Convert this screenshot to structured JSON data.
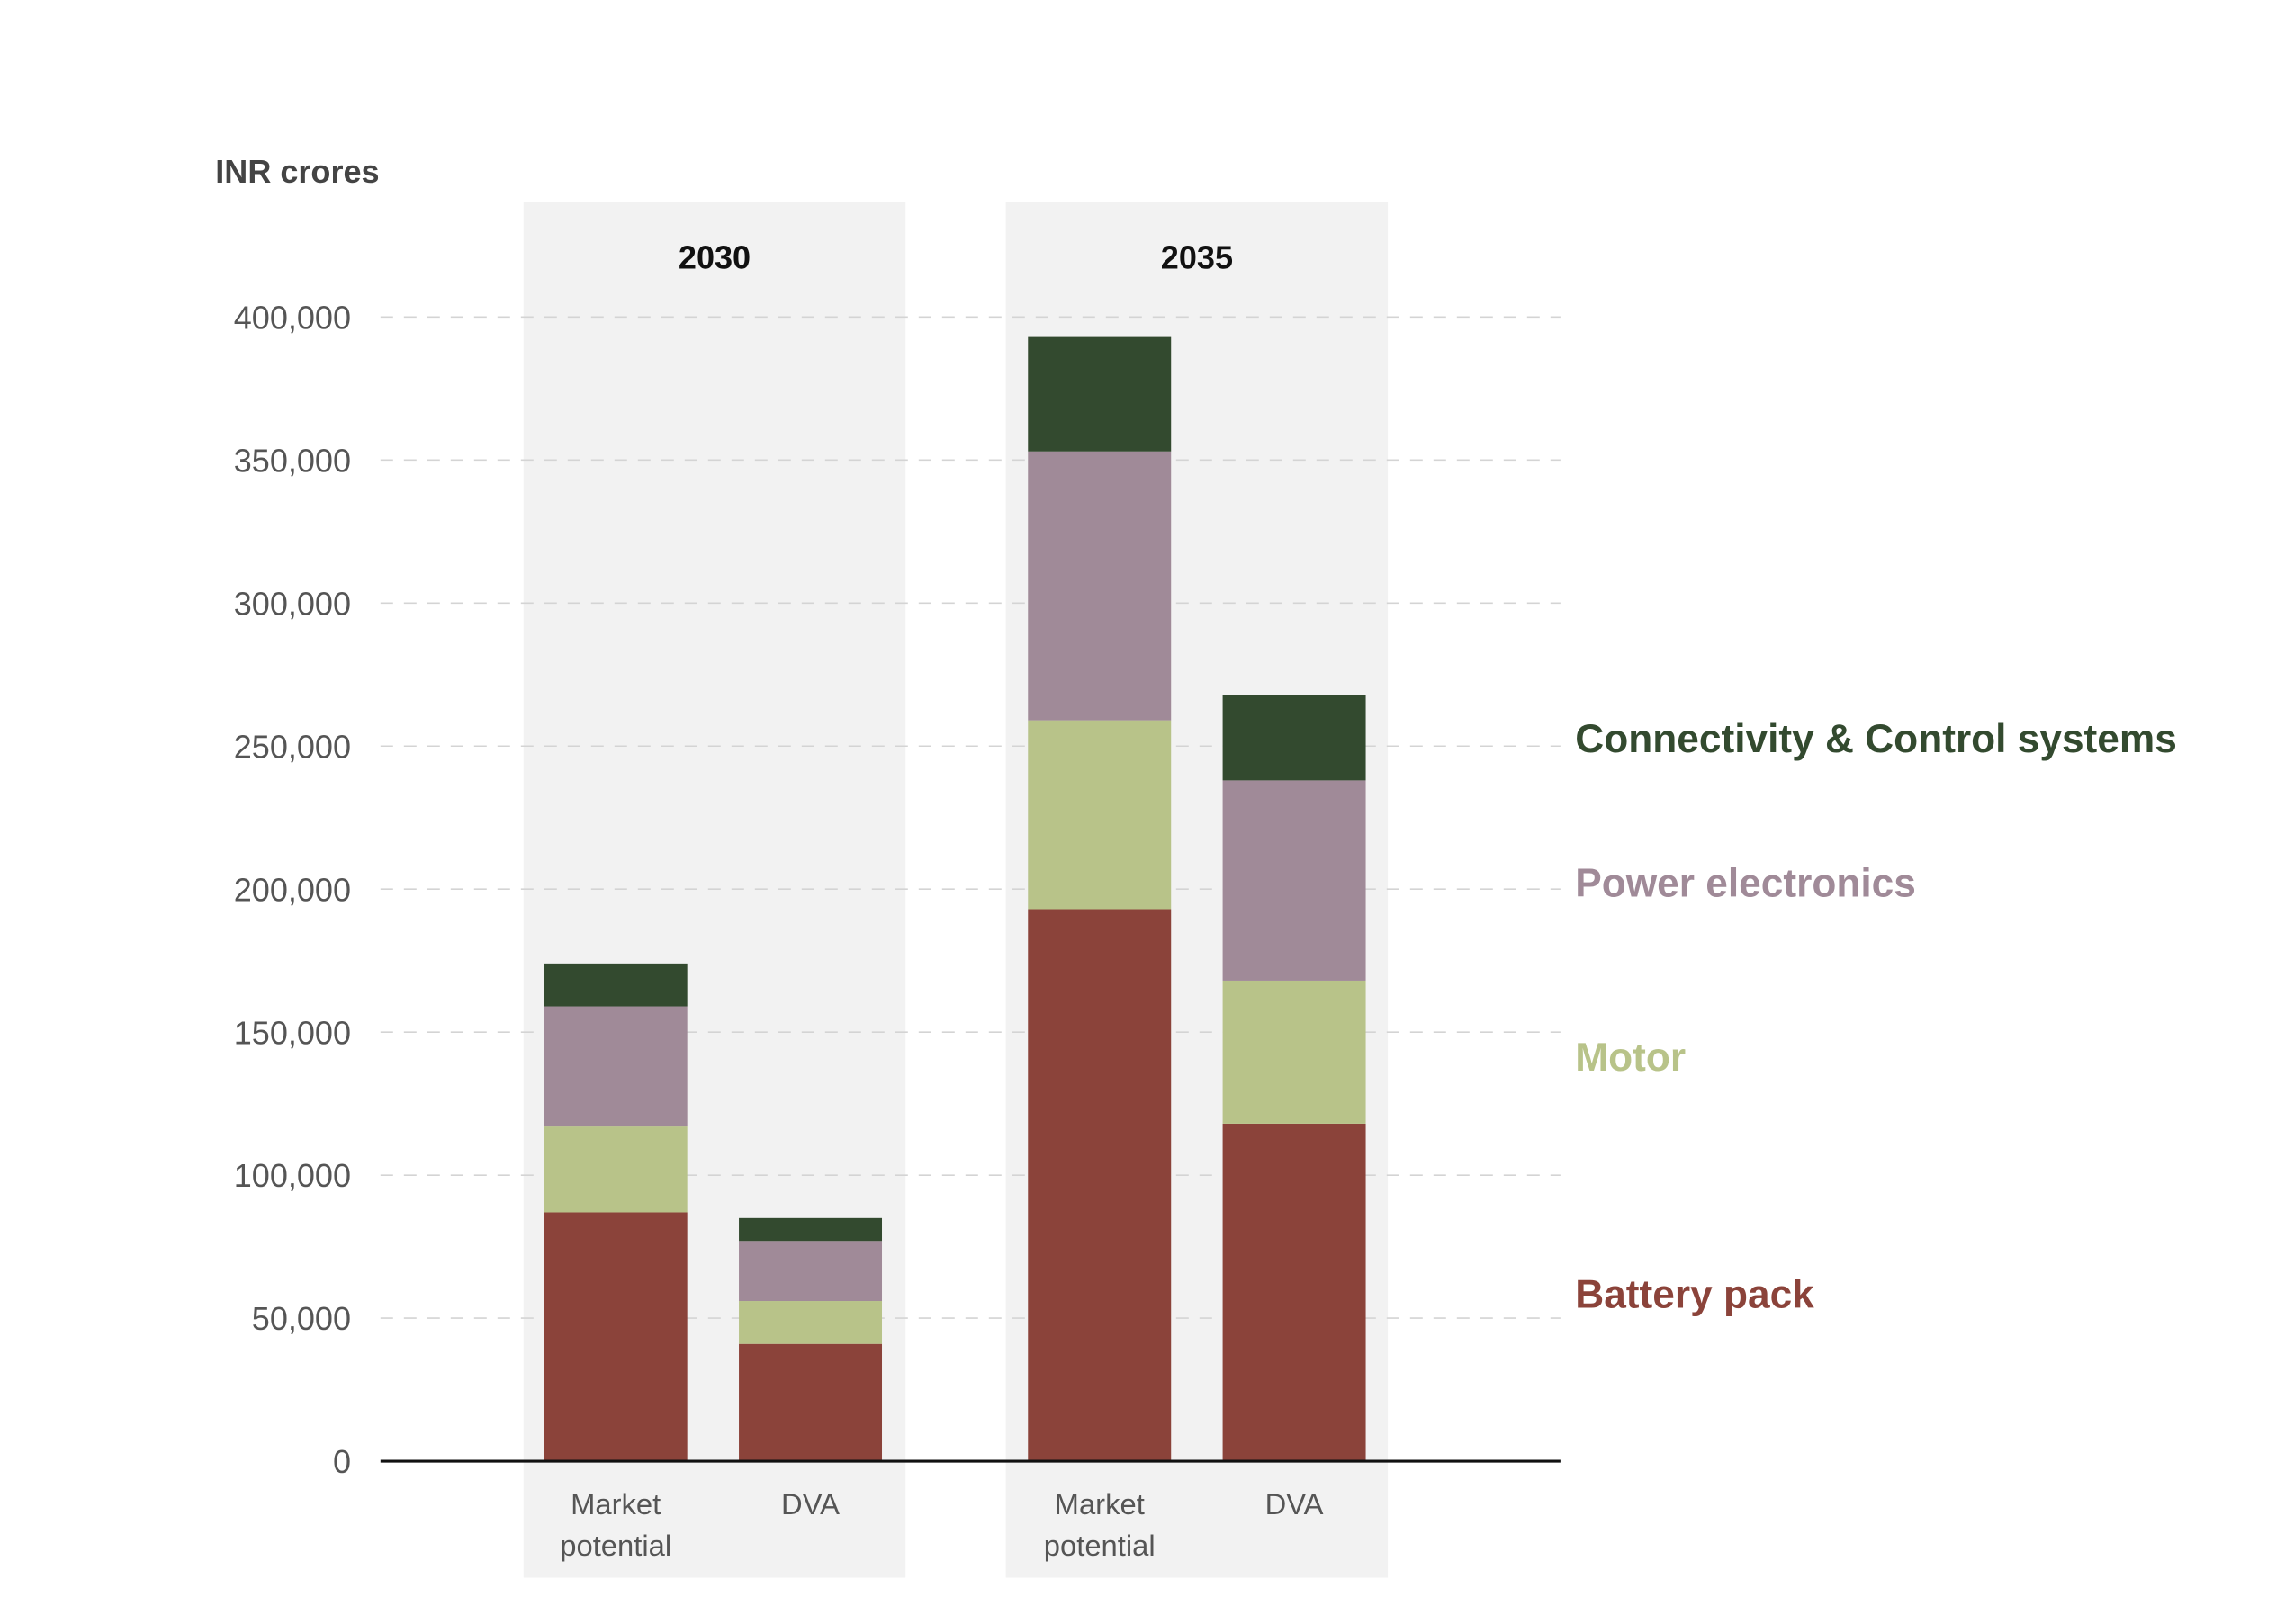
{
  "chart_data": {
    "type": "bar",
    "stacked": true,
    "ylabel": "INR crores",
    "ylim": [
      0,
      400000
    ],
    "yticks": [
      0,
      50000,
      100000,
      150000,
      200000,
      250000,
      300000,
      350000,
      400000
    ],
    "ytick_labels": [
      "0",
      "50,000",
      "100,000",
      "150,000",
      "200,000",
      "250,000",
      "300,000",
      "350,000",
      "400,000"
    ],
    "grid": true,
    "legend_placement": "right",
    "groups": [
      {
        "label": "2030",
        "categories": [
          {
            "label_lines": [
              "Market",
              "potential"
            ]
          },
          {
            "label_lines": [
              "DVA"
            ]
          }
        ]
      },
      {
        "label": "2035",
        "categories": [
          {
            "label_lines": [
              "Market",
              "potential"
            ]
          },
          {
            "label_lines": [
              "DVA"
            ]
          }
        ]
      }
    ],
    "series": [
      {
        "name": "Battery pack",
        "color": "#8b433a",
        "values": [
          87000,
          41000,
          193000,
          118000
        ]
      },
      {
        "name": "Motor",
        "color": "#b8c389",
        "values": [
          30000,
          15000,
          66000,
          50000
        ]
      },
      {
        "name": "Power electronics",
        "color": "#a08a98",
        "values": [
          42000,
          21000,
          94000,
          70000
        ]
      },
      {
        "name": "Connectivity & Control systems",
        "color": "#334a2f",
        "values": [
          15000,
          8000,
          40000,
          30000
        ]
      }
    ],
    "colors": {
      "group_background": "#f2f2f2",
      "grid": "#d4d4d4",
      "axis": "#111111",
      "tick_label": "#555555"
    }
  }
}
